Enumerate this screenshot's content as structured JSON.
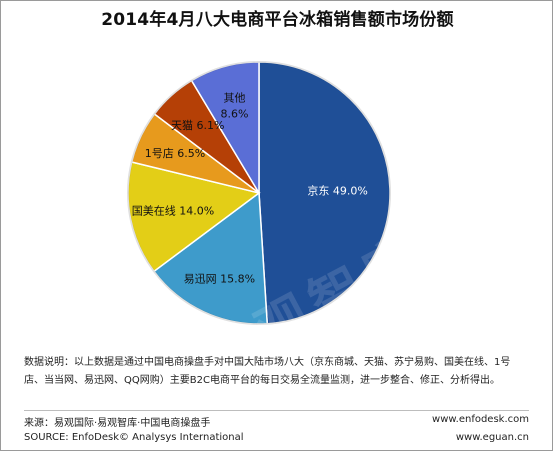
{
  "title": "2014年4月八大电商平台冰箱销售额市场份额",
  "chart_data": {
    "type": "pie",
    "title": "2014年4月八大电商平台冰箱销售额市场份额",
    "labels": [
      "京东",
      "易迅网",
      "国美在线",
      "1号店",
      "天猫",
      "其他"
    ],
    "values": [
      49.0,
      15.8,
      14.0,
      6.5,
      6.1,
      8.6
    ],
    "value_labels": [
      "49.0%",
      "15.8%",
      "14.0%",
      "6.5%",
      "6.1%",
      "8.6%"
    ],
    "colors": [
      "#1f4f97",
      "#3e9bcb",
      "#e3ce17",
      "#e79a1d",
      "#b54006",
      "#5a6ed6"
    ],
    "start_angle_deg": 0,
    "direction": "clockwise"
  },
  "watermark": "易观智库",
  "note": "数据说明：以上数据是通过中国电商操盘手对中国大陆市场八大（京东商城、天猫、苏宁易购、国美在线、1号店、当当网、易迅网、QQ网购）主要B2C电商平台的每日交易全流量监测，进一步整合、修正、分析得出。",
  "footer": {
    "source_cn": "来源：易观国际·易观智库·中国电商操盘手",
    "source_en": "SOURCE: EnfoDesk© Analysys International",
    "site1": "www.enfodesk.com",
    "site2": "www.eguan.cn"
  }
}
